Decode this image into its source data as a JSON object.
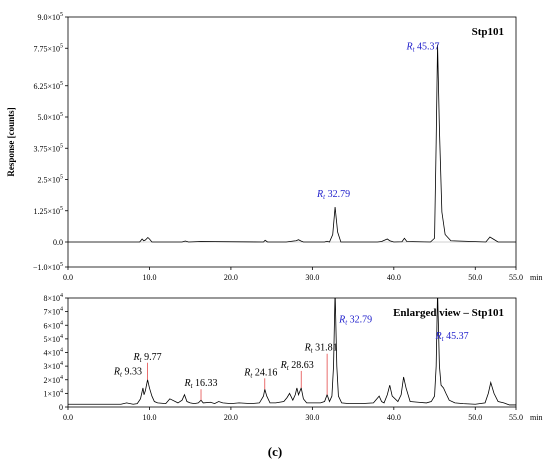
{
  "caption": "(c)",
  "chart_data": [
    {
      "type": "line",
      "title": "Stp101",
      "ylabel": "Response [counts]",
      "xlabel": "",
      "x_unit": "min",
      "xlim": [
        0,
        55
      ],
      "ylim": [
        -100000,
        900000
      ],
      "x_ticks": [
        "0.0",
        "10.0",
        "20.0",
        "30.0",
        "40.0",
        "50.0",
        "55.0"
      ],
      "x_tick_values": [
        0,
        10,
        20,
        30,
        40,
        50,
        55
      ],
      "y_ticks": [
        {
          "value": 900000,
          "mantissa": "9.0×10",
          "exp": "5"
        },
        {
          "value": 775000,
          "mantissa": "7.75×10",
          "exp": "5"
        },
        {
          "value": 625000,
          "mantissa": "6.25×10",
          "exp": "5"
        },
        {
          "value": 500000,
          "mantissa": "5.0×10",
          "exp": "5"
        },
        {
          "value": 375000,
          "mantissa": "3.75×10",
          "exp": "5"
        },
        {
          "value": 250000,
          "mantissa": "2.5×10",
          "exp": "5"
        },
        {
          "value": 125000,
          "mantissa": "1.25×10",
          "exp": "5"
        },
        {
          "value": 0,
          "mantissa": "0.0",
          "exp": ""
        },
        {
          "value": -100000,
          "mantissa": "−1.0×10",
          "exp": "5"
        }
      ],
      "series": [
        {
          "x": [
            0,
            8.8,
            9.1,
            9.3,
            9.5,
            9.8,
            10.0,
            10.3,
            14.0,
            14.4,
            14.8,
            16.3,
            24.0,
            24.2,
            24.5,
            26.8,
            27.7,
            28.0,
            28.3,
            28.6,
            28.9,
            31.5,
            31.8,
            32.1,
            32.5,
            32.79,
            33.1,
            33.5,
            38.0,
            38.5,
            39.2,
            39.5,
            40.0,
            41.0,
            41.3,
            41.6,
            44.5,
            45.0,
            45.2,
            45.37,
            45.6,
            45.9,
            46.3,
            47.0,
            51.3,
            51.8,
            52.3,
            52.8,
            55.0
          ],
          "y": [
            0,
            0,
            12000,
            5000,
            8000,
            18000,
            12000,
            0,
            0,
            4000,
            0,
            2000,
            0,
            7000,
            0,
            0,
            4000,
            5000,
            9000,
            4000,
            0,
            0,
            3000,
            0,
            30000,
            140000,
            40000,
            0,
            0,
            2000,
            12000,
            5000,
            0,
            1000,
            15000,
            2000,
            0,
            15000,
            400000,
            790000,
            450000,
            120000,
            30000,
            5000,
            0,
            20000,
            10000,
            0,
            0
          ]
        }
      ],
      "annotations": [
        {
          "label": "Rt",
          "value": "32.79",
          "x": 32.79,
          "y": 140000
        },
        {
          "label": "Rt",
          "value": "45.37",
          "x": 45.37,
          "y": 790000
        }
      ]
    },
    {
      "type": "line",
      "title": "Enlarged view – Stp101",
      "xlabel": "",
      "x_unit": "min",
      "xlim": [
        0,
        55
      ],
      "ylim": [
        0,
        80000
      ],
      "x_ticks": [
        "0.0",
        "10.0",
        "20.0",
        "30.0",
        "40.0",
        "50.0",
        "55.0"
      ],
      "x_tick_values": [
        0,
        10,
        20,
        30,
        40,
        50,
        55
      ],
      "y_ticks": [
        {
          "value": 80000,
          "mantissa": "8×10",
          "exp": "4"
        },
        {
          "value": 70000,
          "mantissa": "7×10",
          "exp": "4"
        },
        {
          "value": 60000,
          "mantissa": "6×10",
          "exp": "4"
        },
        {
          "value": 50000,
          "mantissa": "5×10",
          "exp": "4"
        },
        {
          "value": 40000,
          "mantissa": "4×10",
          "exp": "4"
        },
        {
          "value": 30000,
          "mantissa": "3×10",
          "exp": "4"
        },
        {
          "value": 20000,
          "mantissa": "2×10",
          "exp": "4"
        },
        {
          "value": 10000,
          "mantissa": "1×10",
          "exp": "4"
        },
        {
          "value": 0,
          "mantissa": "0",
          "exp": ""
        }
      ],
      "series": [
        {
          "x": [
            0,
            6.5,
            7.2,
            8.0,
            8.5,
            8.9,
            9.2,
            9.33,
            9.5,
            9.77,
            10.0,
            10.3,
            10.6,
            11.0,
            12.0,
            12.5,
            13.5,
            14.0,
            14.3,
            14.6,
            15.0,
            15.5,
            16.0,
            16.33,
            16.6,
            17.5,
            18.0,
            18.5,
            19.0,
            20.0,
            21.0,
            22.5,
            23.5,
            24.0,
            24.16,
            24.4,
            24.8,
            25.5,
            26.5,
            26.9,
            27.2,
            27.6,
            27.9,
            28.1,
            28.3,
            28.63,
            28.9,
            29.3,
            30.0,
            31.0,
            31.5,
            31.81,
            32.1,
            32.4,
            32.6,
            32.79,
            33.0,
            33.2,
            33.6,
            34.5,
            36.0,
            37.5,
            38.2,
            38.5,
            38.8,
            39.2,
            39.5,
            39.8,
            40.5,
            40.9,
            41.2,
            41.5,
            42.0,
            43.0,
            44.0,
            44.6,
            45.0,
            45.2,
            45.37,
            45.6,
            45.8,
            46.1,
            46.4,
            46.8,
            47.5,
            48.5,
            50.0,
            51.2,
            51.6,
            51.9,
            52.3,
            52.8,
            53.5,
            54.2,
            55.0
          ],
          "y": [
            2000,
            2000,
            3000,
            2000,
            2500,
            6000,
            14000,
            9000,
            12000,
            20000,
            14000,
            8000,
            4000,
            3000,
            2500,
            6000,
            3000,
            5000,
            9000,
            4000,
            3000,
            2500,
            3000,
            5000,
            3000,
            3500,
            2500,
            4000,
            3000,
            2500,
            3000,
            2500,
            3000,
            8000,
            13000,
            8000,
            3000,
            3000,
            4000,
            7000,
            10000,
            5000,
            9000,
            14000,
            9000,
            14000,
            6000,
            3000,
            3000,
            3000,
            4000,
            9000,
            4000,
            8000,
            30000,
            85000,
            30000,
            8000,
            3000,
            2500,
            2500,
            3000,
            8000,
            4000,
            3000,
            9000,
            16000,
            8000,
            4000,
            9000,
            22000,
            14000,
            4000,
            3500,
            3000,
            4000,
            8000,
            30000,
            85000,
            30000,
            16000,
            14000,
            10000,
            5000,
            3000,
            2500,
            2000,
            3000,
            10000,
            18000,
            10000,
            4000,
            3000,
            1500,
            1500
          ]
        }
      ],
      "annotations": [
        {
          "label": "Rt",
          "value": "9.33",
          "x": 9.33,
          "y": 9000,
          "dx": -2,
          "dy": -20,
          "anchor": "end",
          "color": "#000000",
          "leader": false
        },
        {
          "label": "Rt",
          "value": "9.77",
          "x": 9.77,
          "y": 20000,
          "dx": 0,
          "dy": -20,
          "anchor": "middle",
          "color": "#000000",
          "leader": true
        },
        {
          "label": "Rt",
          "value": "16.33",
          "x": 16.33,
          "y": 5000,
          "dx": 0,
          "dy": -14,
          "anchor": "middle",
          "color": "#000000",
          "leader": true
        },
        {
          "label": "Rt",
          "value": "24.16",
          "x": 24.16,
          "y": 13000,
          "dx": -4,
          "dy": -14,
          "anchor": "middle",
          "color": "#000000",
          "leader": true
        },
        {
          "label": "Rt",
          "value": "28.63",
          "x": 28.63,
          "y": 14000,
          "dx": -4,
          "dy": -20,
          "anchor": "middle",
          "color": "#000000",
          "leader": true
        },
        {
          "label": "Rt",
          "value": "31.81",
          "x": 31.81,
          "y": 9000,
          "dx": -6,
          "dy": -44,
          "anchor": "middle",
          "color": "#000000",
          "leader": true
        },
        {
          "label": "Rt",
          "value": "32.79",
          "x": 32.79,
          "y": 85000,
          "dx": 4,
          "dy": 0,
          "anchor": "start",
          "color": "#2222cc",
          "leader": false,
          "fixed_y": 62000
        },
        {
          "label": "Rt",
          "value": "45.37",
          "x": 45.37,
          "y": 85000,
          "dx": -2,
          "dy": 0,
          "anchor": "start",
          "color": "#2222cc",
          "leader": false,
          "fixed_y": 50000
        }
      ]
    }
  ]
}
